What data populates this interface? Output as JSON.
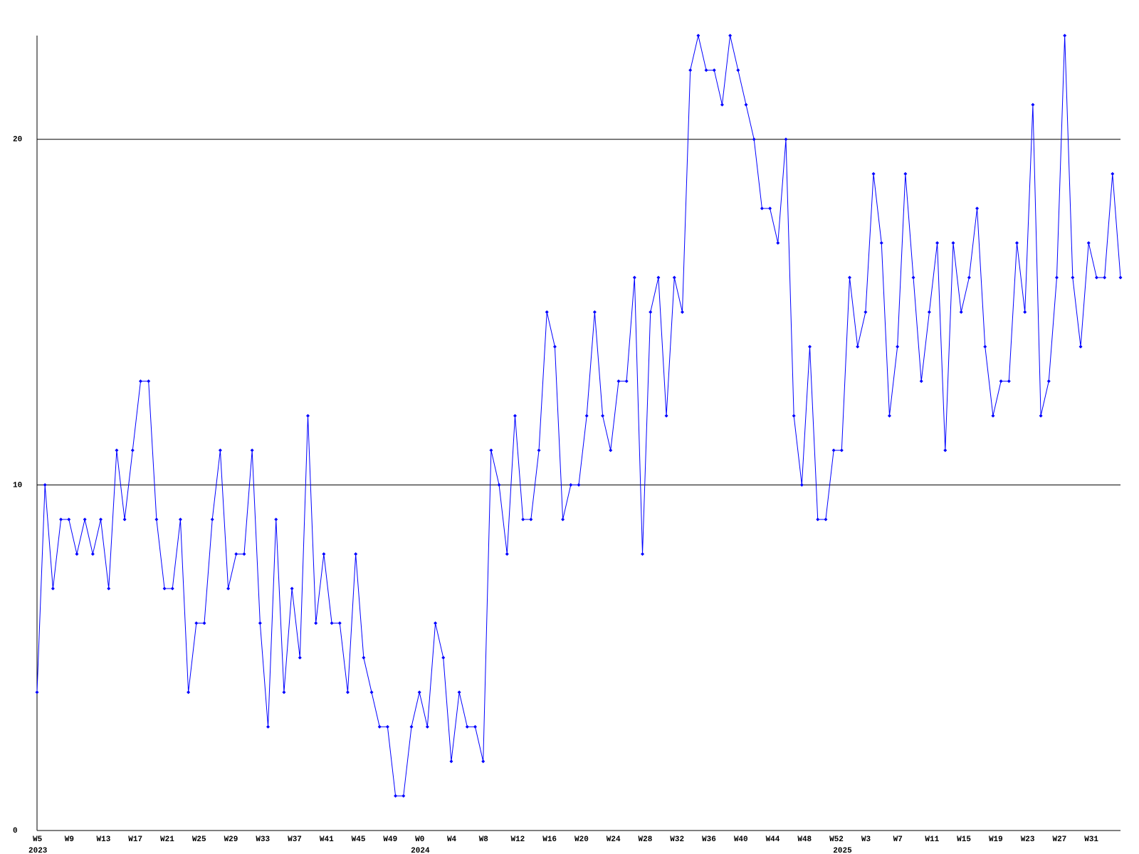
{
  "chart_data": {
    "type": "line",
    "categories": [
      "W5",
      null,
      null,
      null,
      "W9",
      null,
      null,
      null,
      "W13",
      null,
      null,
      null,
      "W17",
      null,
      null,
      null,
      "W21",
      null,
      null,
      null,
      "W25",
      null,
      null,
      null,
      "W29",
      null,
      null,
      null,
      "W33",
      null,
      null,
      null,
      "W37",
      null,
      null,
      null,
      "W41",
      null,
      null,
      null,
      "W45",
      null,
      null,
      null,
      "W49",
      null,
      null,
      null,
      "W0",
      null,
      null,
      null,
      "W4",
      null,
      null,
      null,
      "W8",
      null,
      null,
      null,
      "W12",
      null,
      null,
      null,
      "W16",
      null,
      null,
      null,
      "W20",
      null,
      null,
      null,
      "W24",
      null,
      null,
      null,
      "W28",
      null,
      null,
      null,
      "W32",
      null,
      null,
      null,
      "W36",
      null,
      null,
      null,
      "W40",
      null,
      null,
      null,
      "W44",
      null,
      null,
      null,
      "W48",
      null,
      null,
      null,
      "W52",
      null,
      null,
      null,
      "W3",
      null,
      null,
      null,
      "W7",
      null,
      null,
      null,
      "W11",
      null,
      null,
      null,
      "W15",
      null,
      null,
      null,
      "W19",
      null,
      null,
      null,
      "W23",
      null,
      null,
      null,
      "W27",
      null,
      null,
      null,
      "W31",
      null,
      null,
      null,
      null
    ],
    "years": [
      "2023",
      null,
      null,
      null,
      null,
      null,
      null,
      null,
      null,
      null,
      null,
      null,
      null,
      null,
      null,
      null,
      null,
      null,
      null,
      null,
      null,
      null,
      null,
      null,
      null,
      null,
      null,
      null,
      null,
      null,
      null,
      null,
      null,
      null,
      null,
      null,
      null,
      null,
      null,
      null,
      null,
      null,
      null,
      null,
      null,
      null,
      null,
      null,
      "2024",
      null,
      null,
      null,
      null,
      null,
      null,
      null,
      null,
      null,
      null,
      null,
      null,
      null,
      null,
      null,
      null,
      null,
      null,
      null,
      null,
      null,
      null,
      null,
      null,
      null,
      null,
      null,
      null,
      null,
      null,
      null,
      null,
      null,
      null,
      null,
      null,
      null,
      null,
      null,
      null,
      null,
      null,
      null,
      null,
      null,
      null,
      null,
      null,
      null,
      null,
      null,
      null,
      "2025",
      null,
      null,
      null,
      null,
      null,
      null,
      null,
      null,
      null,
      null,
      null,
      null,
      null,
      null,
      null,
      null,
      null,
      null,
      null,
      null,
      null,
      null,
      null,
      null,
      null,
      null,
      null,
      null,
      null,
      null,
      null,
      null,
      null,
      null,
      null
    ],
    "values": [
      4,
      10,
      7,
      9,
      9,
      8,
      9,
      8,
      9,
      7,
      11,
      9,
      11,
      13,
      13,
      9,
      7,
      7,
      9,
      4,
      6,
      6,
      9,
      11,
      7,
      8,
      8,
      11,
      6,
      3,
      9,
      4,
      7,
      5,
      12,
      6,
      8,
      6,
      6,
      4,
      8,
      5,
      4,
      3,
      3,
      1,
      1,
      3,
      4,
      3,
      6,
      5,
      2,
      4,
      3,
      3,
      2,
      11,
      10,
      8,
      12,
      9,
      9,
      11,
      15,
      14,
      9,
      10,
      10,
      12,
      15,
      12,
      11,
      13,
      13,
      16,
      8,
      15,
      16,
      12,
      16,
      15,
      22,
      23,
      22,
      22,
      21,
      23,
      22,
      21,
      20,
      18,
      18,
      17,
      20,
      12,
      10,
      14,
      9,
      9,
      11,
      11,
      16,
      14,
      15,
      19,
      17,
      12,
      14,
      19,
      16,
      13,
      15,
      17,
      11,
      17,
      15,
      16,
      18,
      14,
      12,
      13,
      13,
      17,
      15,
      21,
      12,
      13,
      16,
      23,
      16,
      14,
      17,
      16,
      16,
      19,
      16
    ],
    "color": "#0000ff",
    "ylim": [
      0,
      23
    ],
    "yticks": [
      0,
      10,
      20
    ],
    "grid": true
  }
}
